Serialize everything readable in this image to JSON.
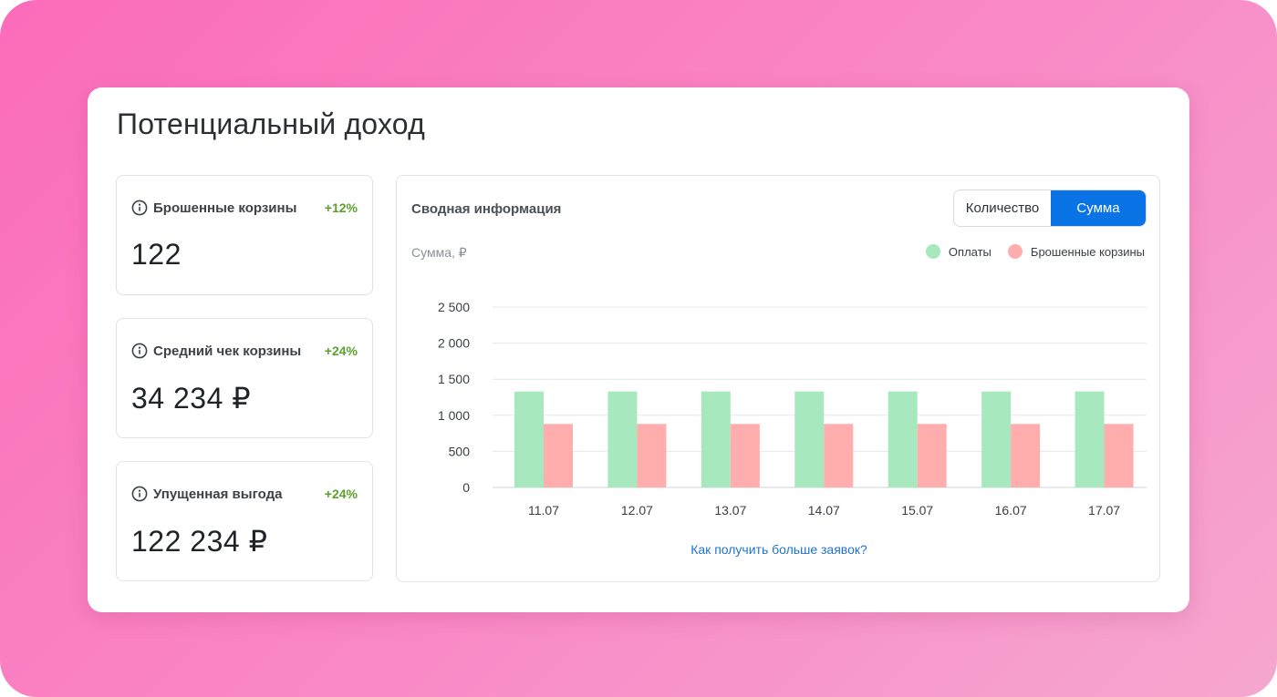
{
  "page": {
    "title": "Потенциальный доход"
  },
  "metrics": [
    {
      "label": "Брошенные корзины",
      "delta": "+12%",
      "value": "122",
      "icon": "info-icon"
    },
    {
      "label": "Средний чек корзины",
      "delta": "+24%",
      "value": "34 234 ₽",
      "icon": "info-icon"
    },
    {
      "label": "Упущенная выгода",
      "delta": "+24%",
      "value": "122 234 ₽",
      "icon": "info-icon"
    }
  ],
  "summary": {
    "title": "Сводная информация",
    "toggle": {
      "count_label": "Количество",
      "sum_label": "Сумма",
      "active": "sum"
    },
    "unit_label": "Сумма, ₽",
    "link": "Как получить больше заявок?"
  },
  "colors": {
    "accent": "#0a74e6",
    "positive": "#5aa02c",
    "payments": "#a8e8bf",
    "abandoned": "#ffadad",
    "link": "#1f73d0"
  },
  "chart_data": {
    "type": "bar",
    "categories": [
      "11.07",
      "12.07",
      "13.07",
      "14.07",
      "15.07",
      "16.07",
      "17.07"
    ],
    "series": [
      {
        "name": "Оплаты",
        "values": [
          1330,
          1330,
          1330,
          1330,
          1330,
          1330,
          1330
        ]
      },
      {
        "name": "Брошенные корзины",
        "values": [
          880,
          880,
          880,
          880,
          880,
          880,
          880
        ]
      }
    ],
    "y_ticks": [
      {
        "value": 0,
        "label": "0"
      },
      {
        "value": 500,
        "label": "500"
      },
      {
        "value": 1000,
        "label": "1 000"
      },
      {
        "value": 1500,
        "label": "1 500"
      },
      {
        "value": 2000,
        "label": "2 000"
      },
      {
        "value": 2500,
        "label": "2 500"
      }
    ],
    "ylim": [
      0,
      2500
    ],
    "grid": true,
    "legend": "top-right"
  }
}
